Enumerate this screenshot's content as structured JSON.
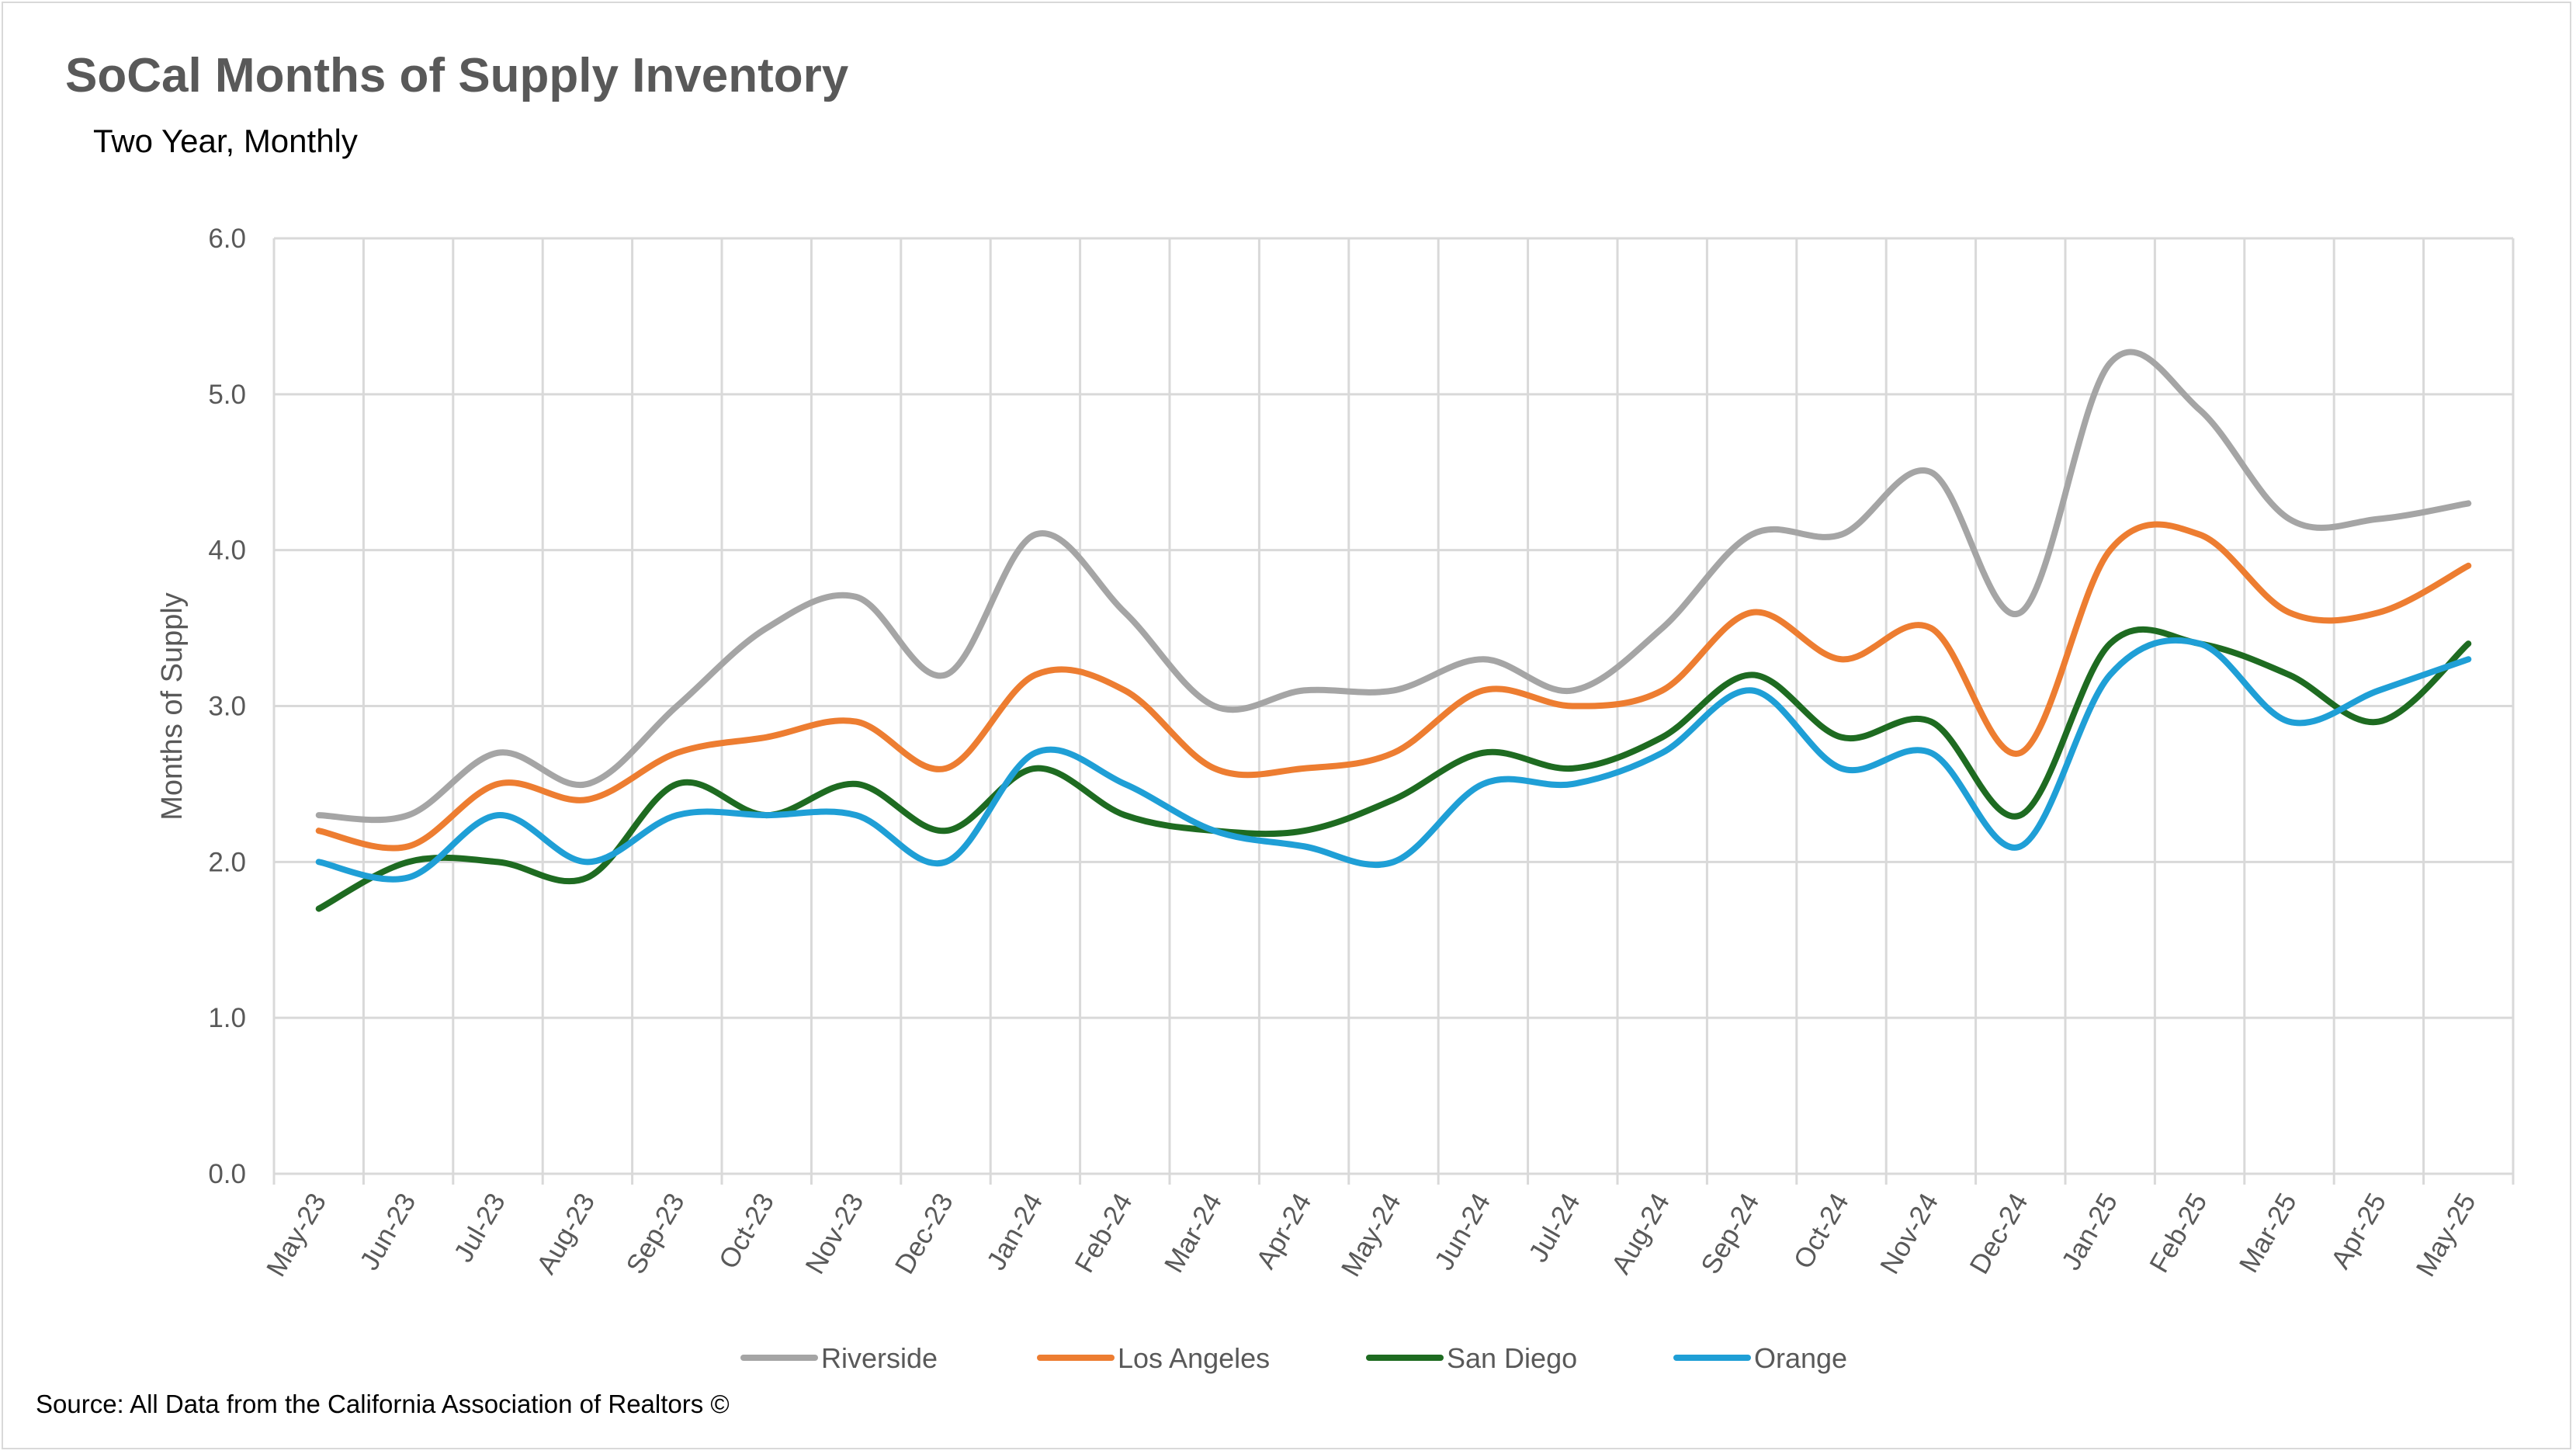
{
  "chart_data": {
    "type": "line",
    "title": "SoCal Months of Supply Inventory",
    "subtitle": "Two Year, Monthly",
    "source": "Source: All Data from the California Association of Realtors ©",
    "xlabel": "",
    "ylabel": "Months of Supply",
    "ylim": [
      0,
      6
    ],
    "yticks": [
      "0.0",
      "1.0",
      "2.0",
      "3.0",
      "4.0",
      "5.0",
      "6.0"
    ],
    "grid": true,
    "legend_position": "bottom",
    "categories": [
      "May-23",
      "Jun-23",
      "Jul-23",
      "Aug-23",
      "Sep-23",
      "Oct-23",
      "Nov-23",
      "Dec-23",
      "Jan-24",
      "Feb-24",
      "Mar-24",
      "Apr-24",
      "May-24",
      "Jun-24",
      "Jul-24",
      "Aug-24",
      "Sep-24",
      "Oct-24",
      "Nov-24",
      "Dec-24",
      "Jan-25",
      "Feb-25",
      "Mar-25",
      "Apr-25",
      "May-25"
    ],
    "series": [
      {
        "name": "Riverside",
        "color": "#a5a5a5",
        "values": [
          2.3,
          2.3,
          2.7,
          2.5,
          3.0,
          3.5,
          3.7,
          3.2,
          4.1,
          3.6,
          3.0,
          3.1,
          3.1,
          3.3,
          3.1,
          3.5,
          4.1,
          4.1,
          4.5,
          3.6,
          5.2,
          4.9,
          4.2,
          4.2,
          4.3
        ]
      },
      {
        "name": "Los Angeles",
        "color": "#ed7d31",
        "values": [
          2.2,
          2.1,
          2.5,
          2.4,
          2.7,
          2.8,
          2.9,
          2.6,
          3.2,
          3.1,
          2.6,
          2.6,
          2.7,
          3.1,
          3.0,
          3.1,
          3.6,
          3.3,
          3.5,
          2.7,
          4.0,
          4.1,
          3.6,
          3.6,
          3.9
        ]
      },
      {
        "name": "San Diego",
        "color": "#1e6b21",
        "values": [
          1.7,
          2.0,
          2.0,
          1.9,
          2.5,
          2.3,
          2.5,
          2.2,
          2.6,
          2.3,
          2.2,
          2.2,
          2.4,
          2.7,
          2.6,
          2.8,
          3.2,
          2.8,
          2.9,
          2.3,
          3.4,
          3.4,
          3.2,
          2.9,
          3.4
        ]
      },
      {
        "name": "Orange",
        "color": "#1f9fd6",
        "values": [
          2.0,
          1.9,
          2.3,
          2.0,
          2.3,
          2.3,
          2.3,
          2.0,
          2.7,
          2.5,
          2.2,
          2.1,
          2.0,
          2.5,
          2.5,
          2.7,
          3.1,
          2.6,
          2.7,
          2.1,
          3.2,
          3.4,
          2.9,
          3.1,
          3.3
        ]
      }
    ]
  }
}
